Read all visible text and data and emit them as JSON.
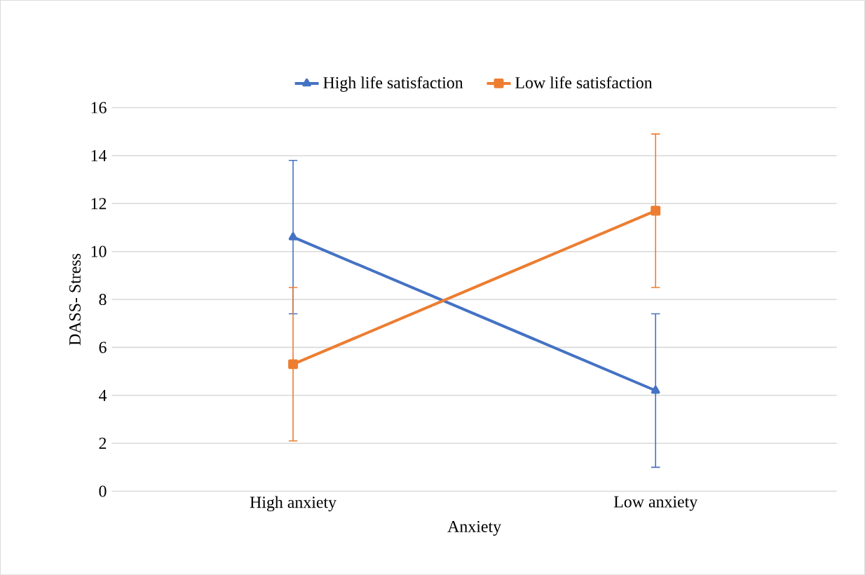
{
  "chart_data": {
    "type": "line",
    "xlabel": "Anxiety",
    "ylabel": "DASS- Stress",
    "categories": [
      "High anxiety",
      "Low anxiety"
    ],
    "series": [
      {
        "name": "High life satisfaction",
        "color": "#4472c4",
        "marker": "triangle",
        "values": [
          10.6,
          4.2
        ],
        "errors": [
          3.2,
          3.2
        ]
      },
      {
        "name": "Low life satisfaction",
        "color": "#ed7d31",
        "marker": "square",
        "values": [
          5.3,
          11.7
        ],
        "errors": [
          3.2,
          3.2
        ]
      }
    ],
    "ylim": [
      0,
      16
    ],
    "yticks": [
      0,
      2,
      4,
      6,
      8,
      10,
      12,
      14,
      16
    ],
    "grid": "y",
    "legend": "top"
  }
}
